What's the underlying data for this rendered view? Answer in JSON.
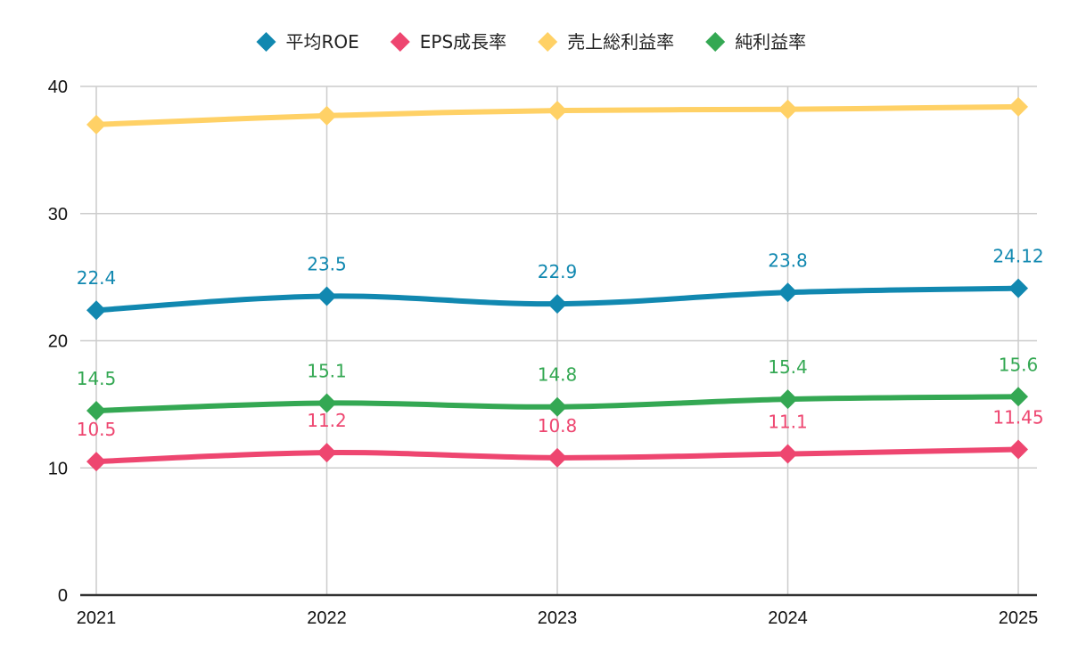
{
  "chart_data": {
    "type": "line",
    "title": "",
    "xlabel": "",
    "ylabel": "",
    "categories": [
      "2021",
      "2022",
      "2023",
      "2024",
      "2025"
    ],
    "ylim": [
      0,
      40
    ],
    "yticks": [
      0,
      10,
      20,
      30,
      40
    ],
    "grid": true,
    "legend_position": "top-center",
    "series": [
      {
        "name": "平均ROE",
        "color": "#1188b0",
        "values": [
          22.4,
          23.5,
          22.9,
          23.8,
          24.12
        ],
        "labels": [
          "22.4",
          "23.5",
          "22.9",
          "23.8",
          "24.12"
        ],
        "label_position": "above",
        "show_labels": true
      },
      {
        "name": "EPS成長率",
        "color": "#ee4670",
        "values": [
          10.5,
          11.2,
          10.8,
          11.1,
          11.45
        ],
        "labels": [
          "10.5",
          "11.2",
          "10.8",
          "11.1",
          "11.45"
        ],
        "label_position": "above",
        "show_labels": true
      },
      {
        "name": "売上総利益率",
        "color": "#ffd166",
        "values": [
          37.0,
          37.7,
          38.1,
          38.2,
          38.4
        ],
        "labels": [],
        "show_labels": false
      },
      {
        "name": "純利益率",
        "color": "#34a853",
        "values": [
          14.5,
          15.1,
          14.8,
          15.4,
          15.6
        ],
        "labels": [
          "14.5",
          "15.1",
          "14.8",
          "15.4",
          "15.6"
        ],
        "label_position": "above",
        "show_labels": true
      }
    ]
  }
}
